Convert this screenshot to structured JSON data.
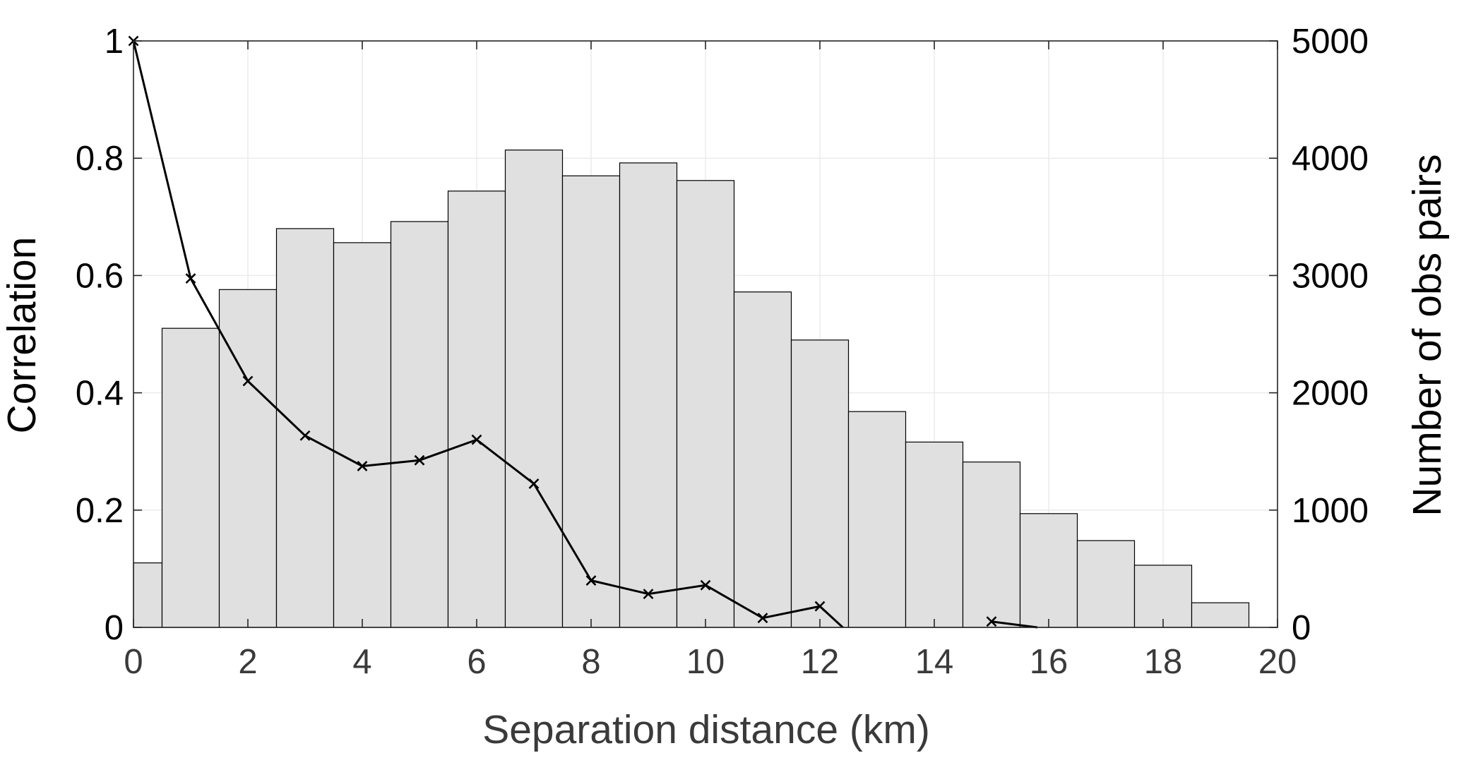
{
  "chart_data": {
    "type": "bar+line",
    "title": "",
    "xlabel": "Separation distance (km)",
    "ylabel_left": "Correlation",
    "ylabel_right": "Number of obs pairs",
    "xlim": [
      0,
      20
    ],
    "ylim_left": [
      0,
      1
    ],
    "ylim_right": [
      0,
      5000
    ],
    "xticks": [
      "0",
      "2",
      "4",
      "6",
      "8",
      "10",
      "12",
      "14",
      "16",
      "18",
      "20"
    ],
    "yticks_left": [
      "0",
      "0.2",
      "0.4",
      "0.6",
      "0.8",
      "1"
    ],
    "yticks_right": [
      "0",
      "1000",
      "2000",
      "3000",
      "4000",
      "5000"
    ],
    "grid": true,
    "bars": {
      "name": "Number of obs pairs",
      "axis": "right",
      "centers": [
        0,
        1,
        2,
        3,
        4,
        5,
        6,
        7,
        8,
        9,
        10,
        11,
        12,
        13,
        14,
        15,
        16,
        17,
        18,
        19
      ],
      "values": [
        550,
        2550,
        2880,
        3400,
        3280,
        3460,
        3720,
        4070,
        3850,
        3960,
        3810,
        2860,
        2450,
        1840,
        1580,
        1410,
        970,
        740,
        530,
        210
      ],
      "color": "#e0e0e0",
      "edge_color": "#000000"
    },
    "series": [
      {
        "name": "Correlation",
        "axis": "left",
        "segments": [
          {
            "x": [
              0,
              1,
              2,
              3,
              4,
              5,
              6,
              7,
              8,
              9,
              10,
              11,
              12,
              12.4
            ],
            "y": [
              1.0,
              0.595,
              0.42,
              0.327,
              0.275,
              0.285,
              0.32,
              0.245,
              0.08,
              0.057,
              0.072,
              0.016,
              0.036,
              0.0
            ]
          },
          {
            "x": [
              15,
              15.8
            ],
            "y": [
              0.01,
              0.0
            ]
          }
        ],
        "markers_x": [
          0,
          1,
          2,
          3,
          4,
          5,
          6,
          7,
          8,
          9,
          10,
          11,
          12,
          15
        ],
        "markers_y": [
          1.0,
          0.595,
          0.42,
          0.327,
          0.275,
          0.285,
          0.32,
          0.245,
          0.08,
          0.057,
          0.072,
          0.016,
          0.036,
          0.01
        ],
        "marker": "x",
        "color": "#000000"
      }
    ]
  }
}
